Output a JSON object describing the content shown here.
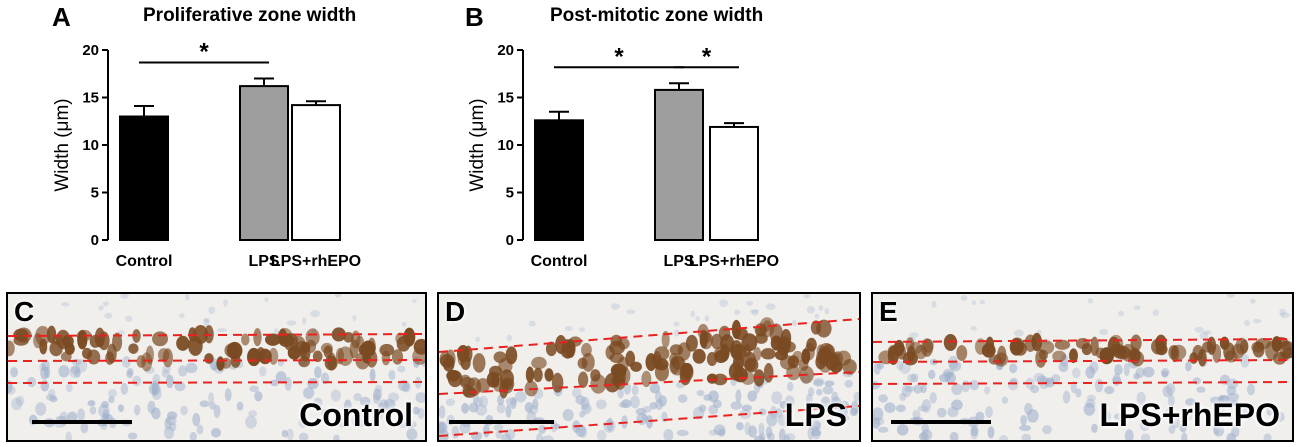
{
  "panel_labels": {
    "a": "A",
    "b": "B"
  },
  "chart_data": [
    {
      "type": "bar",
      "title": "Proliferative zone width",
      "ylabel": "Width (μm)",
      "xlabel": "",
      "categories": [
        "Control",
        "LPS",
        "LPS+rhEPO"
      ],
      "values": [
        13.0,
        16.2,
        14.2
      ],
      "errors": [
        1.1,
        0.8,
        0.4
      ],
      "bar_colors": [
        "#000000",
        "#9e9e9e",
        "#ffffff"
      ],
      "ylim": [
        0,
        20
      ],
      "yticks": [
        "0",
        "5",
        "10",
        "15",
        "20"
      ],
      "ytick_values": [
        0,
        5,
        10,
        15,
        20
      ],
      "grid": false,
      "significance": [
        {
          "from": 0,
          "to": 1,
          "label": "*"
        }
      ]
    },
    {
      "type": "bar",
      "title": "Post-mitotic zone width",
      "ylabel": "Width (μm)",
      "xlabel": "",
      "categories": [
        "Control",
        "LPS",
        "LPS+rhEPO"
      ],
      "values": [
        12.6,
        15.8,
        11.9
      ],
      "errors": [
        0.9,
        0.7,
        0.4
      ],
      "bar_colors": [
        "#000000",
        "#9e9e9e",
        "#ffffff"
      ],
      "ylim": [
        0,
        20
      ],
      "yticks": [
        "0",
        "5",
        "10",
        "15",
        "20"
      ],
      "ytick_values": [
        0,
        5,
        10,
        15,
        20
      ],
      "grid": false,
      "significance": [
        {
          "from": 0,
          "to": 1,
          "label": "*"
        },
        {
          "from": 1,
          "to": 2,
          "label": "*"
        }
      ]
    }
  ],
  "micrographs": [
    {
      "letter": "C",
      "label": "Control"
    },
    {
      "letter": "D",
      "label": "LPS"
    },
    {
      "letter": "E",
      "label": "LPS+rhEPO"
    }
  ],
  "colors": {
    "zone_line": "#e8231f",
    "nucleus_stain": "#7a4a22",
    "counterstain": "#9fb0cc",
    "scale_bar": "#000000"
  }
}
